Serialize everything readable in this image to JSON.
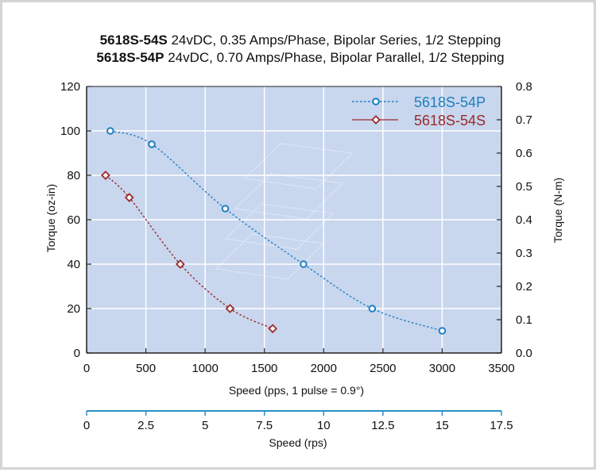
{
  "chart_data": {
    "type": "line",
    "title_lines": [
      {
        "bold": "5618S-54S",
        "rest": " 24vDC, 0.35 Amps/Phase, Bipolar Series, 1/2 Stepping"
      },
      {
        "bold": "5618S-54P",
        "rest": " 24vDC, 0.70 Amps/Phase, Bipolar Parallel, 1/2 Stepping"
      }
    ],
    "xlabel": "Speed (pps, 1 pulse = 0.9°)",
    "ylabel": "Torque (oz-in)",
    "ylabel_right": "Torque (N-m)",
    "xlabel_secondary": "Speed (rps)",
    "xlim": [
      0,
      3500
    ],
    "ylim": [
      0,
      120
    ],
    "ylim_right": [
      0,
      0.8
    ],
    "xlim_secondary": [
      0,
      17.5
    ],
    "x_ticks": [
      0,
      500,
      1000,
      1500,
      2000,
      2500,
      3000,
      3500
    ],
    "y_ticks": [
      0,
      20,
      40,
      60,
      80,
      100,
      120
    ],
    "y_right_ticks": [
      "0.0",
      "0.1",
      "0.2",
      "0.3",
      "0.4",
      "0.5",
      "0.6",
      "0.7",
      "0.8"
    ],
    "x_secondary_ticks": [
      "0",
      "2.5",
      "5",
      "7.5",
      "10",
      "12.5",
      "15",
      "17.5"
    ],
    "grid": true,
    "legend_position": "top-right",
    "series": [
      {
        "name": "5618S-54P",
        "color": "#1f7fc0",
        "marker": "circle",
        "line_style": "dotted",
        "x": [
          200,
          550,
          1170,
          1830,
          2410,
          3000
        ],
        "y": [
          100,
          94,
          65,
          40,
          20,
          10
        ]
      },
      {
        "name": "5618S-54S",
        "color": "#9b2a2a",
        "marker": "diamond",
        "line_style": "dotted",
        "x": [
          160,
          360,
          790,
          1210,
          1570
        ],
        "y": [
          80,
          70,
          40,
          20,
          11
        ]
      }
    ],
    "colors": {
      "plot_background": "#c8d6ee",
      "grid": "#ffffff",
      "axis": "#222222",
      "secondary_axis": "#2a8fc8"
    }
  }
}
